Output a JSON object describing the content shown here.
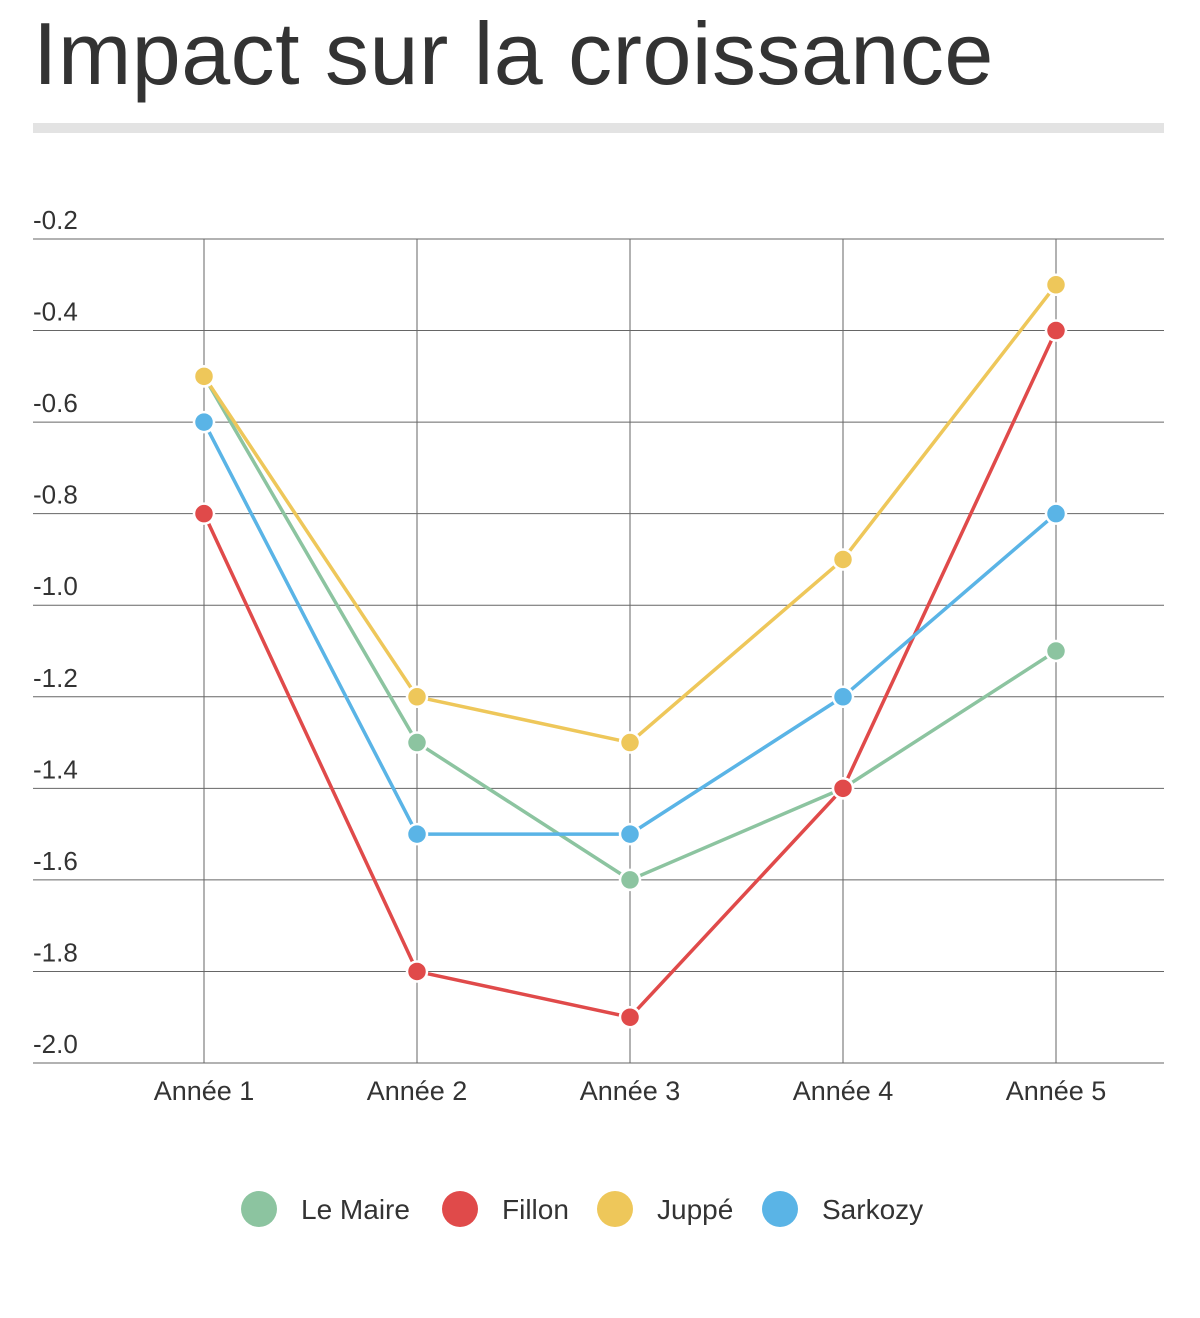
{
  "title": "Impact sur la croissance",
  "chart_data": {
    "type": "line",
    "categories": [
      "Année 1",
      "Année 2",
      "Année 3",
      "Année 4",
      "Année 5"
    ],
    "ylim": [
      -2.0,
      -0.2
    ],
    "yticks": [
      "-0.2",
      "-0.4",
      "-0.6",
      "-0.8",
      "-1.0",
      "-1.2",
      "-1.4",
      "-1.6",
      "-1.8",
      "-2.0"
    ],
    "grid": true,
    "legend_position": "bottom",
    "series": [
      {
        "name": "Le Maire",
        "color": "#8cc4a0",
        "values": [
          -0.5,
          -1.3,
          -1.6,
          -1.4,
          -1.1
        ]
      },
      {
        "name": "Fillon",
        "color": "#e04a4a",
        "values": [
          -0.8,
          -1.8,
          -1.9,
          -1.4,
          -0.4
        ]
      },
      {
        "name": "Juppé",
        "color": "#eec75a",
        "values": [
          -0.5,
          -1.2,
          -1.3,
          -0.9,
          -0.3
        ]
      },
      {
        "name": "Sarkozy",
        "color": "#5ab4e6",
        "values": [
          -0.6,
          -1.5,
          -1.5,
          -1.2,
          -0.8
        ]
      }
    ]
  }
}
